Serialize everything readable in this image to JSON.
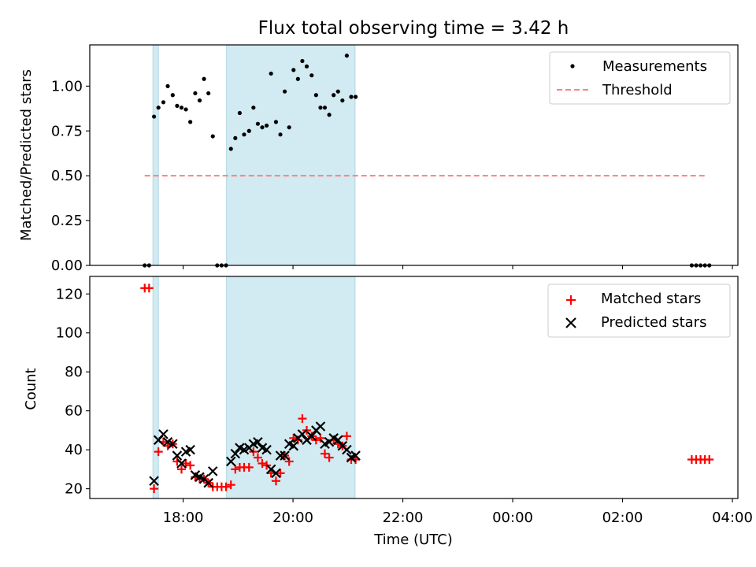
{
  "chart_data": {
    "type": "scatter",
    "title": "Flux total observing time = 3.42 h",
    "xlabel": "Time (UTC)",
    "x_unit": "hours since 17:00 UTC",
    "xlim": [
      -0.7,
      11.1
    ],
    "x_ticks": [
      {
        "value": 1,
        "label": "18:00"
      },
      {
        "value": 3,
        "label": "20:00"
      },
      {
        "value": 5,
        "label": "22:00"
      },
      {
        "value": 7,
        "label": "00:00"
      },
      {
        "value": 9,
        "label": "02:00"
      },
      {
        "value": 11,
        "label": "04:00"
      }
    ],
    "shaded_intervals": [
      [
        0.45,
        0.55
      ],
      [
        1.55,
        1.55
      ],
      [
        1.79,
        4.13
      ]
    ],
    "shaded_color": "#add8e6",
    "top": {
      "ylabel": "Matched/Predicted stars",
      "ylim": [
        0,
        1.23
      ],
      "y_ticks": [
        {
          "value": 0,
          "label": "0.00"
        },
        {
          "value": 0.25,
          "label": "0.25"
        },
        {
          "value": 0.5,
          "label": "0.50"
        },
        {
          "value": 0.75,
          "label": "0.75"
        },
        {
          "value": 1.0,
          "label": "1.00"
        }
      ],
      "legend": [
        "Measurements",
        "Threshold"
      ],
      "legend_position": "upper right",
      "threshold": {
        "value": 0.5,
        "x_range": [
          0.3,
          10.55
        ],
        "color": "#ff7f7f"
      },
      "measurements": {
        "x": [
          0.3,
          0.38,
          0.47,
          0.55,
          0.64,
          0.72,
          0.81,
          0.89,
          0.97,
          1.05,
          1.13,
          1.22,
          1.3,
          1.38,
          1.46,
          1.54,
          1.62,
          1.7,
          1.78,
          1.87,
          1.95,
          2.03,
          2.11,
          2.2,
          2.28,
          2.36,
          2.44,
          2.52,
          2.6,
          2.69,
          2.77,
          2.85,
          2.93,
          3.01,
          3.09,
          3.17,
          3.25,
          3.34,
          3.42,
          3.5,
          3.58,
          3.66,
          3.74,
          3.82,
          3.9,
          3.98,
          4.06,
          4.14,
          10.26,
          10.34,
          10.42,
          10.5,
          10.58
        ],
        "y": [
          0.0,
          0.0,
          0.83,
          0.88,
          0.91,
          1.0,
          0.95,
          0.89,
          0.88,
          0.87,
          0.8,
          0.96,
          0.92,
          1.04,
          0.96,
          0.72,
          0.0,
          0.0,
          0.0,
          0.65,
          0.71,
          0.85,
          0.73,
          0.75,
          0.88,
          0.79,
          0.77,
          0.78,
          1.07,
          0.8,
          0.73,
          0.97,
          0.77,
          1.09,
          1.04,
          1.14,
          1.11,
          1.06,
          0.95,
          0.88,
          0.88,
          0.84,
          0.95,
          0.97,
          0.92,
          1.17,
          0.94,
          0.94,
          0.0,
          0.0,
          0.0,
          0.0,
          0.0
        ]
      }
    },
    "bottom": {
      "ylabel": "Count",
      "ylim": [
        15,
        129
      ],
      "y_ticks": [
        {
          "value": 20,
          "label": "20"
        },
        {
          "value": 40,
          "label": "40"
        },
        {
          "value": 60,
          "label": "60"
        },
        {
          "value": 80,
          "label": "80"
        },
        {
          "value": 100,
          "label": "100"
        },
        {
          "value": 120,
          "label": "120"
        }
      ],
      "legend": [
        "Matched stars",
        "Predicted stars"
      ],
      "legend_position": "upper right",
      "series": [
        {
          "name": "Matched stars",
          "marker": "+",
          "color": "#ff0000",
          "x": [
            0.3,
            0.38,
            0.47,
            0.55,
            0.64,
            0.72,
            0.81,
            0.89,
            0.97,
            1.05,
            1.13,
            1.22,
            1.3,
            1.38,
            1.46,
            1.54,
            1.62,
            1.7,
            1.78,
            1.87,
            1.95,
            2.03,
            2.11,
            2.2,
            2.28,
            2.36,
            2.44,
            2.52,
            2.6,
            2.69,
            2.77,
            2.85,
            2.93,
            3.01,
            3.09,
            3.17,
            3.25,
            3.34,
            3.42,
            3.5,
            3.58,
            3.66,
            3.74,
            3.82,
            3.9,
            3.98,
            4.06,
            4.14,
            10.26,
            10.34,
            10.42,
            10.5,
            10.58
          ],
          "y": [
            123,
            123,
            20,
            39,
            44,
            42,
            43,
            34,
            30,
            33,
            32,
            26,
            25,
            25,
            23,
            21,
            21,
            21,
            21,
            22,
            30,
            31,
            31,
            31,
            39,
            36,
            33,
            32,
            28,
            24,
            28,
            37,
            34,
            46,
            45,
            56,
            50,
            47,
            45,
            46,
            38,
            36,
            45,
            43,
            42,
            47,
            35,
            35,
            35,
            35,
            35,
            35,
            35
          ]
        },
        {
          "name": "Predicted stars",
          "marker": "x",
          "color": "#000000",
          "x": [
            0.47,
            0.55,
            0.64,
            0.72,
            0.81,
            0.89,
            0.97,
            1.05,
            1.13,
            1.22,
            1.3,
            1.38,
            1.46,
            1.54,
            1.87,
            1.95,
            2.03,
            2.11,
            2.2,
            2.28,
            2.36,
            2.44,
            2.52,
            2.6,
            2.69,
            2.77,
            2.85,
            2.93,
            3.01,
            3.09,
            3.17,
            3.25,
            3.34,
            3.42,
            3.5,
            3.58,
            3.66,
            3.74,
            3.82,
            3.9,
            3.98,
            4.06,
            4.14
          ],
          "y": [
            24,
            45,
            48,
            44,
            43,
            37,
            33,
            39,
            40,
            27,
            26,
            25,
            23,
            29,
            34,
            38,
            41,
            40,
            41,
            43,
            44,
            41,
            40,
            30,
            28,
            37,
            37,
            43,
            42,
            46,
            48,
            45,
            47,
            50,
            52,
            43,
            44,
            46,
            45,
            42,
            40,
            36,
            37
          ]
        }
      ]
    }
  }
}
